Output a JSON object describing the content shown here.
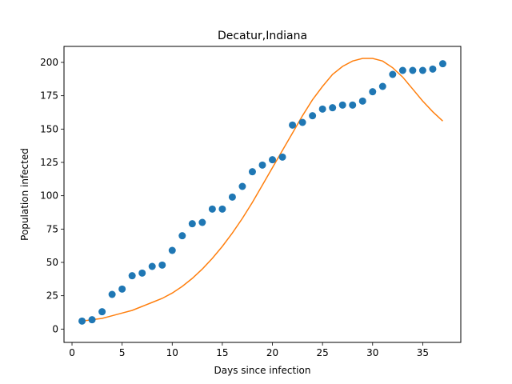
{
  "chart_data": {
    "type": "scatter",
    "title": "Decatur,Indiana",
    "xlabel": "Days since infection",
    "ylabel": "Population infected",
    "xlim": [
      -0.8,
      38.8
    ],
    "ylim": [
      -10,
      212
    ],
    "xticks": [
      0,
      5,
      10,
      15,
      20,
      25,
      30,
      35
    ],
    "yticks": [
      0,
      25,
      50,
      75,
      100,
      125,
      150,
      175,
      200
    ],
    "grid": false,
    "legend": "none",
    "series": [
      {
        "kind": "scatter",
        "color": "#1f77b4",
        "x": [
          1,
          2,
          3,
          4,
          5,
          6,
          7,
          8,
          9,
          10,
          11,
          12,
          13,
          14,
          15,
          16,
          17,
          18,
          19,
          20,
          21,
          22,
          23,
          24,
          25,
          26,
          27,
          28,
          29,
          30,
          31,
          32,
          33,
          34,
          35,
          36,
          37
        ],
        "y": [
          6,
          7,
          13,
          26,
          30,
          40,
          42,
          47,
          48,
          59,
          70,
          79,
          80,
          90,
          90,
          99,
          107,
          118,
          123,
          127,
          129,
          153,
          155,
          160,
          165,
          166,
          168,
          168,
          171,
          178,
          182,
          191,
          194,
          194,
          194,
          195,
          199
        ]
      },
      {
        "kind": "line",
        "color": "#ff7f0e",
        "x": [
          1,
          2,
          3,
          4,
          5,
          6,
          7,
          8,
          9,
          10,
          11,
          12,
          13,
          14,
          15,
          16,
          17,
          18,
          19,
          20,
          21,
          22,
          23,
          24,
          25,
          26,
          27,
          28,
          29,
          30,
          31,
          32,
          33,
          34,
          35,
          36,
          37
        ],
        "y": [
          6,
          7,
          8,
          10,
          12,
          14,
          17,
          20,
          23,
          27,
          32,
          38,
          45,
          53,
          62,
          72,
          83,
          95,
          108,
          121,
          134,
          147,
          160,
          172,
          182,
          191,
          197,
          201,
          203,
          203,
          201,
          196,
          189,
          180,
          171,
          163,
          156
        ]
      }
    ]
  }
}
